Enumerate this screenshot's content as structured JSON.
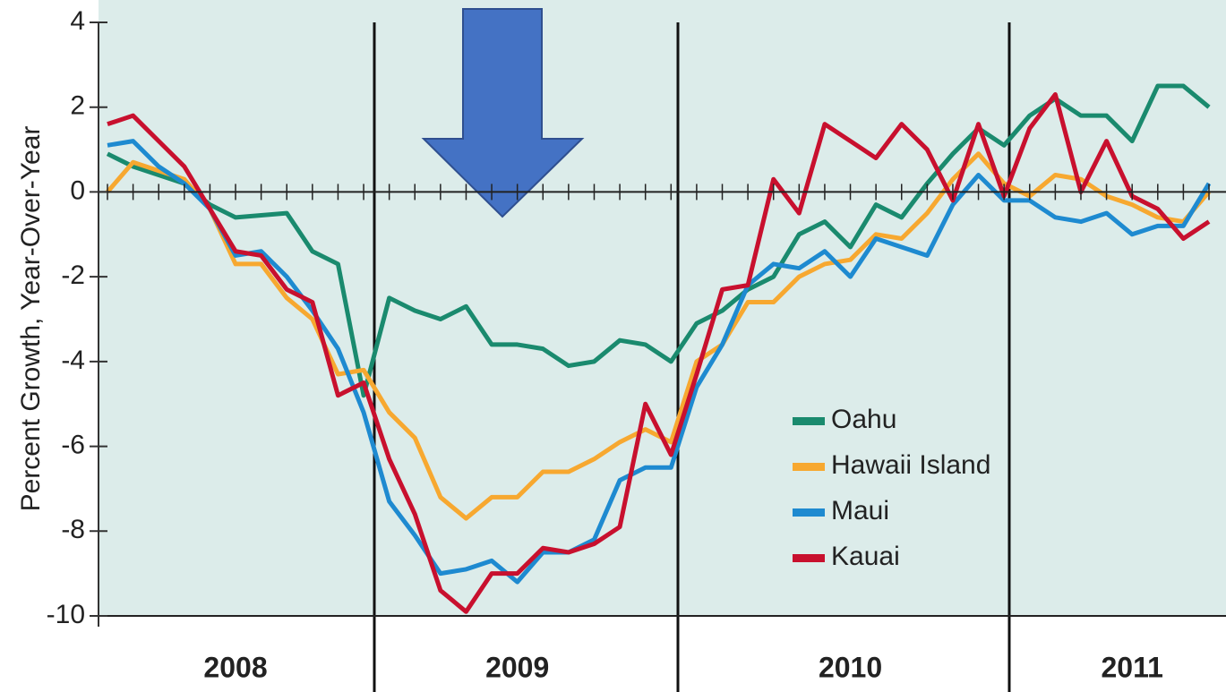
{
  "chart_data": {
    "type": "line",
    "y_label": "Percent Growth, Year-Over-Year",
    "categories": [
      null,
      null,
      null,
      null,
      null,
      "2008",
      null,
      null,
      null,
      null,
      null,
      null,
      null,
      null,
      null,
      null,
      "2009",
      null,
      null,
      null,
      null,
      null,
      null,
      null,
      null,
      null,
      null,
      null,
      null,
      "2010",
      null,
      null,
      null,
      null,
      null,
      null,
      null,
      null,
      null,
      null,
      "2011",
      null,
      null,
      null
    ],
    "ylim": [
      -10,
      4
    ],
    "yticks": [
      4,
      2,
      0,
      -2,
      -4,
      -6,
      -8,
      -10
    ],
    "series": [
      {
        "name": "Oahu",
        "color": "#1a8a6e",
        "values": [
          0.9,
          0.6,
          0.4,
          0.2,
          -0.3,
          -0.6,
          -0.55,
          -0.5,
          -1.4,
          -1.7,
          -4.8,
          -2.5,
          -2.8,
          -3.0,
          -2.7,
          -3.6,
          -3.6,
          -3.7,
          -4.1,
          -4.0,
          -3.5,
          -3.6,
          -4.0,
          -3.1,
          -2.8,
          -2.3,
          -2.0,
          -1.0,
          -0.7,
          -1.3,
          -0.3,
          -0.6,
          0.2,
          0.9,
          1.5,
          1.1,
          1.8,
          2.2,
          1.8,
          1.8,
          1.2,
          2.5,
          2.5,
          2.0
        ]
      },
      {
        "name": "Hawaii Island",
        "color": "#f7a830",
        "values": [
          0.0,
          0.7,
          0.5,
          0.3,
          -0.4,
          -1.7,
          -1.7,
          -2.5,
          -3.0,
          -4.3,
          -4.2,
          -5.2,
          -5.8,
          -7.2,
          -7.7,
          -7.2,
          -7.2,
          -6.6,
          -6.6,
          -6.3,
          -5.9,
          -5.6,
          -5.9,
          -4.0,
          -3.6,
          -2.6,
          -2.6,
          -2.0,
          -1.7,
          -1.6,
          -1.0,
          -1.1,
          -0.5,
          0.3,
          0.9,
          0.2,
          -0.1,
          0.4,
          0.3,
          -0.1,
          -0.3,
          -0.6,
          -0.7,
          0.0
        ]
      },
      {
        "name": "Maui",
        "color": "#1e8ad0",
        "values": [
          1.1,
          1.2,
          0.6,
          0.2,
          -0.4,
          -1.5,
          -1.4,
          -2.0,
          -2.8,
          -3.7,
          -5.2,
          -7.3,
          -8.1,
          -9.0,
          -8.9,
          -8.7,
          -9.2,
          -8.5,
          -8.5,
          -8.2,
          -6.8,
          -6.5,
          -6.5,
          -4.6,
          -3.6,
          -2.2,
          -1.7,
          -1.8,
          -1.4,
          -2.0,
          -1.1,
          -1.3,
          -1.5,
          -0.3,
          0.4,
          -0.2,
          -0.2,
          -0.6,
          -0.7,
          -0.5,
          -1.0,
          -0.8,
          -0.8,
          0.2
        ]
      },
      {
        "name": "Kauai",
        "color": "#c8102e",
        "values": [
          1.6,
          1.8,
          1.2,
          0.6,
          -0.4,
          -1.4,
          -1.5,
          -2.3,
          -2.6,
          -4.8,
          -4.5,
          -6.3,
          -7.6,
          -9.4,
          -9.9,
          -9.0,
          -9.0,
          -8.4,
          -8.5,
          -8.3,
          -7.9,
          -5.0,
          -6.2,
          -4.3,
          -2.3,
          -2.2,
          0.3,
          -0.5,
          1.6,
          1.2,
          0.8,
          1.6,
          1.0,
          -0.2,
          1.6,
          -0.1,
          1.5,
          2.3,
          0.0,
          1.2,
          -0.1,
          -0.4,
          -1.1,
          -0.7
        ]
      }
    ]
  }
}
